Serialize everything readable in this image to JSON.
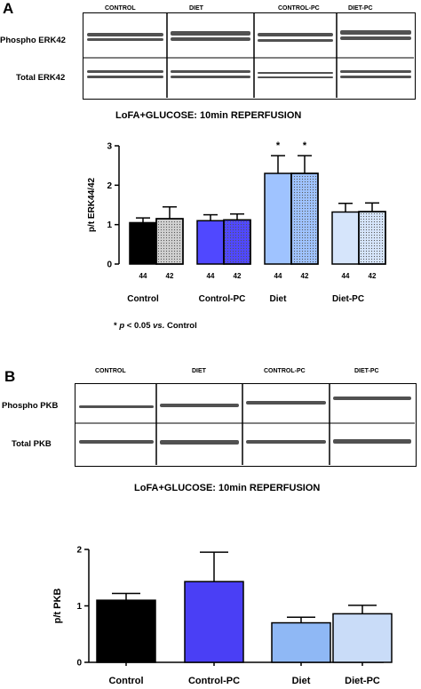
{
  "panel_a": {
    "letter": "A",
    "blot": {
      "lanes": [
        "CONTROL",
        "DIET",
        "CONTROL-PC",
        "DIET-PC"
      ],
      "rows": [
        "Phospho ERK42",
        "Total ERK42"
      ]
    },
    "title": "LoFA+GLUCOSE: 10min REPERFUSION",
    "footnote": {
      "star": "* ",
      "p": "p",
      "rest1": " < 0.05 ",
      "vs": "vs.",
      "rest2": " Control"
    }
  },
  "panel_b": {
    "letter": "B",
    "blot": {
      "lanes": [
        "CONTROL",
        "DIET",
        "CONTROL-PC",
        "DIET-PC"
      ],
      "rows": [
        "Phospho PKB",
        "Total PKB"
      ]
    },
    "title": "LoFA+GLUCOSE: 10min REPERFUSION"
  },
  "chart_data": [
    {
      "type": "bar",
      "ylabel": "p/t ERK44/42",
      "ylim": [
        0,
        3
      ],
      "yticks": [
        0,
        1,
        2,
        3
      ],
      "groups": [
        "Control",
        "Control-PC",
        "Diet",
        "Diet-PC"
      ],
      "bar_labels": [
        "44",
        "42",
        "44",
        "42",
        "44",
        "42",
        "44",
        "42"
      ],
      "values": [
        1.05,
        1.15,
        1.1,
        1.12,
        2.3,
        2.3,
        1.32,
        1.33
      ],
      "errors": [
        0.12,
        0.3,
        0.15,
        0.15,
        0.45,
        0.45,
        0.22,
        0.22
      ],
      "colors": [
        "#000000",
        "#d0d0d0",
        "#5048ff",
        "#5048ff",
        "#9fc3ff",
        "#9fc3ff",
        "#d6e5fb",
        "#d6e5fb"
      ],
      "dotted": [
        false,
        true,
        false,
        true,
        false,
        true,
        false,
        true
      ],
      "annotations": [
        "",
        "",
        "",
        "",
        "*",
        "*",
        "",
        ""
      ]
    },
    {
      "type": "bar",
      "ylabel": "p/t PKB",
      "ylim": [
        0,
        2
      ],
      "yticks": [
        0,
        1,
        2
      ],
      "categories": [
        "Control",
        "Control-PC",
        "Diet",
        "Diet-PC"
      ],
      "values": [
        1.1,
        1.43,
        0.7,
        0.86
      ],
      "errors": [
        0.12,
        0.52,
        0.1,
        0.15
      ],
      "colors": [
        "#000000",
        "#4a3ff5",
        "#8fb8f5",
        "#c9dcf8"
      ]
    }
  ]
}
